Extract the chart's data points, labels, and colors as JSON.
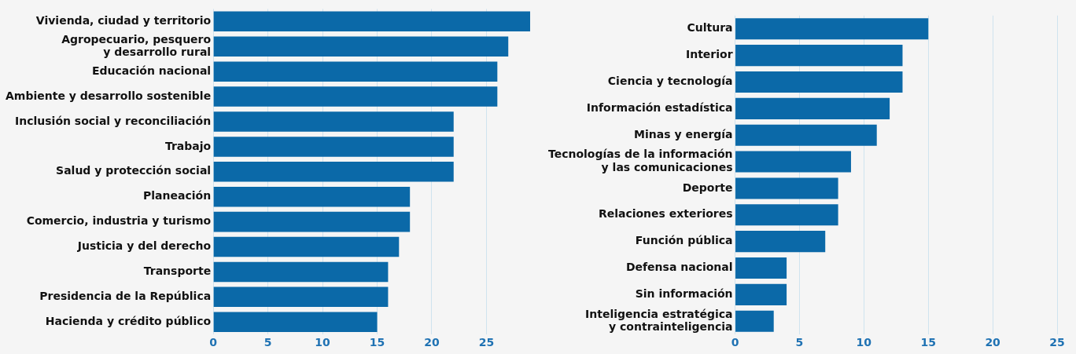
{
  "chart_data": [
    {
      "type": "bar",
      "orientation": "horizontal",
      "categories": [
        "Vivienda, ciudad y territorio",
        "Agropecuario, pesquero\ny desarrollo rural",
        "Educación nacional",
        "Ambiente y desarrollo sostenible",
        "Inclusión social y reconciliación",
        "Trabajo",
        "Salud y protección social",
        "Planeación",
        "Comercio, industria y turismo",
        "Justicia y del derecho",
        "Transporte",
        "Presidencia de la República",
        "Hacienda y crédito público"
      ],
      "values": [
        29,
        27,
        26,
        26,
        22,
        22,
        22,
        18,
        18,
        17,
        16,
        16,
        15
      ],
      "color": "#0b69a8",
      "xlim": [
        0,
        29
      ],
      "xticks": [
        0,
        5,
        10,
        15,
        20,
        25
      ],
      "grid": "x"
    },
    {
      "type": "bar",
      "orientation": "horizontal",
      "categories": [
        "Cultura",
        "Interior",
        "Ciencia y tecnología",
        "Información estadística",
        "Minas y energía",
        "Tecnologías de la información\ny las comunicaciones",
        "Deporte",
        "Relaciones exteriores",
        "Función pública",
        "Defensa nacional",
        "Sin información",
        "Inteligencia estratégica\ny contrainteligencia"
      ],
      "values": [
        15,
        13,
        13,
        12,
        11,
        9,
        8,
        8,
        7,
        4,
        4,
        3
      ],
      "color": "#0b69a8",
      "xlim": [
        0,
        25
      ],
      "xticks": [
        0,
        5,
        10,
        15,
        20,
        25
      ],
      "grid": "x"
    }
  ]
}
